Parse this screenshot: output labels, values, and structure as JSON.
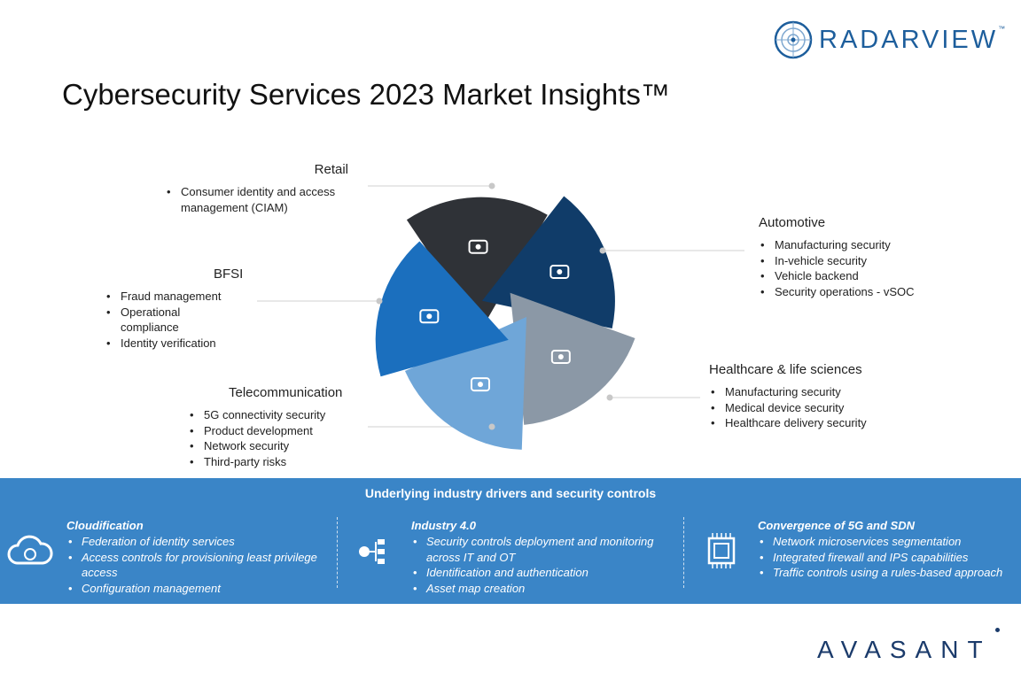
{
  "header": {
    "title": "Cybersecurity Services 2023 Market Insights™",
    "logo_text": "RADARVIEW",
    "logo_tm": "™"
  },
  "segments": [
    {
      "name": "Retail",
      "icon": "shopping-cart-icon",
      "color": "#2f3237",
      "items": [
        "Consumer identity and access management (CIAM)"
      ]
    },
    {
      "name": "Automotive",
      "icon": "car-icon",
      "color": "#103c69",
      "items": [
        "Manufacturing security",
        "In-vehicle security",
        "Vehicle backend",
        "Security operations - vSOC"
      ]
    },
    {
      "name": "Healthcare & life sciences",
      "icon": "stethoscope-icon",
      "color": "#8b98a6",
      "items": [
        "Manufacturing security",
        "Medical device security",
        "Healthcare delivery security"
      ]
    },
    {
      "name": "Telecommunication",
      "icon": "cell-tower-icon",
      "color": "#6fa6d8",
      "items": [
        "5G connectivity security",
        "Product development",
        "Network security",
        "Third-party risks"
      ]
    },
    {
      "name": "BFSI",
      "icon": "money-icon",
      "color": "#1b6fbe",
      "items": [
        "Fraud management",
        "Operational compliance",
        "Identity verification"
      ]
    }
  ],
  "drivers": {
    "title": "Underlying industry drivers and security controls",
    "band_color": "#3a85c7",
    "columns": [
      {
        "title": "Cloudification",
        "icon": "cloud-sync-icon",
        "items": [
          "Federation of identity services",
          "Access controls for provisioning least privilege access",
          "Configuration management"
        ]
      },
      {
        "title": "Industry 4.0",
        "icon": "network-hierarchy-icon",
        "items": [
          "Security controls deployment and monitoring across IT and OT",
          "Identification and authentication",
          "Asset map creation"
        ]
      },
      {
        "title": "Convergence of 5G and SDN",
        "icon": "chip-icon",
        "items": [
          "Network microservices segmentation",
          "Integrated firewall and IPS capabilities",
          "Traffic controls using a rules-based approach"
        ]
      }
    ]
  },
  "footer": {
    "logo_text": "AVASANT"
  }
}
